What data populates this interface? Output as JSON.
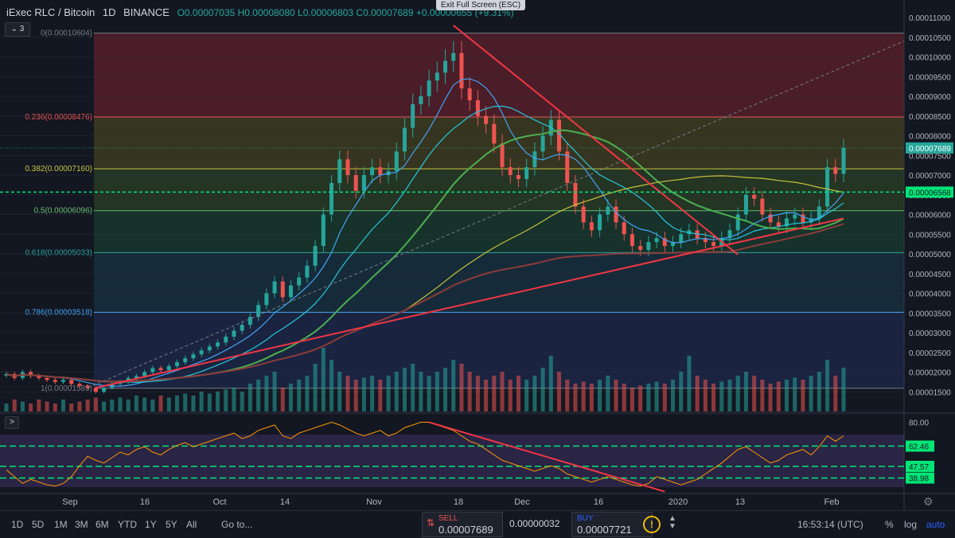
{
  "header": {
    "symbol": "iExec RLC / Bitcoin",
    "interval": "1D",
    "exchange": "BINANCE",
    "ohlc": "O0.00007035 H0.00008080 L0.00006803 C0.00007689 +0.00000655 (+9.31%)",
    "exit_fullscreen": "Exit Full Screen (ESC)",
    "indicator_count": "3",
    "collapse_glyph": ">"
  },
  "chart_data": {
    "type": "line",
    "title": "iExec RLC / Bitcoin 1D BINANCE",
    "price_axis": {
      "min": 1e-05,
      "max": 0.00011,
      "ticks": [
        "0.00011000",
        "0.00010500",
        "0.00010000",
        "0.00009500",
        "0.00009000",
        "0.00008500",
        "0.00008000",
        "0.00007500",
        "0.00007000",
        "0.00006500",
        "0.00006000",
        "0.00005500",
        "0.00005000",
        "0.00004500",
        "0.00004000",
        "0.00003500",
        "0.00003000",
        "0.00002500",
        "0.00002000",
        "0.00001500"
      ],
      "last_price": "0.00007689",
      "marker_price": "0.00006568",
      "marker_value": 6.568e-05
    },
    "time_axis": [
      "Sep",
      "16",
      "Oct",
      "14",
      "Nov",
      "18",
      "Dec",
      "16",
      "2020",
      "13",
      "Feb"
    ],
    "fib_levels": [
      {
        "label": "0(0.00010604)",
        "value": 0.00010604,
        "color": "#787b86"
      },
      {
        "label": "0.236(0.00008476)",
        "value": 8.476e-05,
        "color": "#ef5350"
      },
      {
        "label": "0.382(0.00007160)",
        "value": 7.16e-05,
        "color": "#c6c43d"
      },
      {
        "label": "0.5(0.00006096)",
        "value": 6.096e-05,
        "color": "#66bb6a"
      },
      {
        "label": "0.618(0.00005033)",
        "value": 5.033e-05,
        "color": "#26a69a"
      },
      {
        "label": "0.786(0.00003518)",
        "value": 3.518e-05,
        "color": "#42a5f5"
      },
      {
        "label": "1(0.00001589)",
        "value": 1.589e-05,
        "color": "#787b86"
      }
    ],
    "close_series": [
      1.95e-05,
      1.85e-05,
      2e-05,
      1.9e-05,
      1.85e-05,
      1.8e-05,
      1.75e-05,
      1.8e-05,
      1.7e-05,
      1.65e-05,
      1.6e-05,
      1.5e-05,
      1.6e-05,
      1.7e-05,
      1.75e-05,
      1.85e-05,
      1.9e-05,
      2e-05,
      2.1e-05,
      2.05e-05,
      2.15e-05,
      2.25e-05,
      2.35e-05,
      2.45e-05,
      2.55e-05,
      2.65e-05,
      2.75e-05,
      2.9e-05,
      3.05e-05,
      3.2e-05,
      3.4e-05,
      3.7e-05,
      4e-05,
      4.3e-05,
      3.9e-05,
      4.2e-05,
      4.4e-05,
      4.7e-05,
      5.2e-05,
      6e-05,
      6.8e-05,
      7.4e-05,
      7e-05,
      6.6e-05,
      7e-05,
      7.2e-05,
      7e-05,
      7.1e-05,
      7.6e-05,
      8.2e-05,
      8.8e-05,
      9e-05,
      9.4e-05,
      9.6e-05,
      9.9e-05,
      0.000101,
      9.2e-05,
      8.9e-05,
      8.5e-05,
      8.3e-05,
      7.8e-05,
      7.2e-05,
      7e-05,
      6.9e-05,
      7.2e-05,
      7.6e-05,
      8e-05,
      8.4e-05,
      7.6e-05,
      6.8e-05,
      6.2e-05,
      5.8e-05,
      5.6e-05,
      6e-05,
      6.2e-05,
      5.8e-05,
      5.5e-05,
      5.2e-05,
      5.1e-05,
      5.3e-05,
      5.4e-05,
      5.2e-05,
      5.3e-05,
      5.5e-05,
      5.6e-05,
      5.4e-05,
      5.3e-05,
      5.2e-05,
      5.4e-05,
      5.6e-05,
      6e-05,
      6.5e-05,
      6.4e-05,
      6e-05,
      5.8e-05,
      5.7e-05,
      5.9e-05,
      6e-05,
      5.8e-05,
      5.9e-05,
      6.2e-05,
      7.2e-05,
      7.03e-05,
      7.69e-05
    ],
    "volume_series": [
      0.2,
      0.3,
      0.25,
      0.2,
      0.3,
      0.25,
      0.2,
      0.3,
      0.2,
      0.25,
      0.3,
      0.35,
      0.25,
      0.3,
      0.35,
      0.3,
      0.4,
      0.35,
      0.3,
      0.4,
      0.35,
      0.4,
      0.45,
      0.4,
      0.5,
      0.45,
      0.5,
      0.55,
      0.6,
      0.5,
      0.7,
      0.8,
      0.9,
      1.0,
      0.6,
      0.7,
      0.8,
      0.9,
      1.2,
      1.6,
      1.3,
      1.0,
      0.9,
      0.8,
      0.85,
      0.9,
      0.8,
      0.9,
      1.0,
      1.1,
      1.2,
      1.0,
      0.9,
      1.0,
      1.1,
      1.3,
      1.2,
      1.0,
      0.9,
      0.8,
      0.9,
      1.0,
      0.8,
      0.9,
      0.8,
      0.9,
      1.1,
      1.4,
      1.0,
      0.8,
      0.7,
      0.75,
      0.7,
      0.8,
      0.9,
      0.8,
      0.7,
      0.6,
      0.65,
      0.7,
      0.75,
      0.7,
      0.8,
      1.0,
      1.4,
      0.9,
      0.8,
      0.7,
      0.75,
      0.8,
      0.9,
      1.0,
      0.9,
      0.8,
      0.7,
      0.75,
      0.8,
      0.85,
      0.8,
      0.9,
      1.0,
      1.3,
      0.9,
      1.1
    ],
    "rsi_axis": {
      "min": 30,
      "max": 85,
      "ticks": [
        "80.00"
      ],
      "labels": [
        "62.46",
        "47.57",
        "38.98"
      ],
      "levels": [
        62.46,
        47.57,
        38.98
      ]
    },
    "rsi_series": [
      45,
      40,
      35,
      38,
      36,
      34,
      33,
      35,
      40,
      48,
      55,
      52,
      50,
      54,
      58,
      56,
      60,
      62,
      58,
      56,
      60,
      63,
      65,
      62,
      64,
      66,
      68,
      70,
      72,
      68,
      70,
      74,
      76,
      78,
      70,
      68,
      72,
      74,
      76,
      78,
      80,
      78,
      75,
      72,
      70,
      72,
      74,
      70,
      72,
      76,
      78,
      80,
      80,
      78,
      76,
      74,
      70,
      66,
      64,
      60,
      56,
      52,
      50,
      48,
      46,
      44,
      46,
      48,
      46,
      42,
      40,
      38,
      36,
      38,
      40,
      38,
      36,
      34,
      33,
      35,
      40,
      38,
      36,
      34,
      36,
      38,
      42,
      46,
      50,
      55,
      60,
      62,
      58,
      54,
      50,
      52,
      56,
      58,
      60,
      56,
      62,
      70,
      66,
      70
    ]
  },
  "toolbar": {
    "ranges": [
      "1D",
      "5D",
      "1M",
      "3M",
      "6M",
      "YTD",
      "1Y",
      "5Y",
      "All"
    ],
    "goto": "Go to...",
    "sell_label": "SELL",
    "sell_price": "0.00007689",
    "spread": "0.00000032",
    "buy_label": "BUY",
    "buy_price": "0.00007721",
    "time": "16:53:14 (UTC)",
    "pct": "%",
    "log": "log",
    "auto": "auto"
  }
}
